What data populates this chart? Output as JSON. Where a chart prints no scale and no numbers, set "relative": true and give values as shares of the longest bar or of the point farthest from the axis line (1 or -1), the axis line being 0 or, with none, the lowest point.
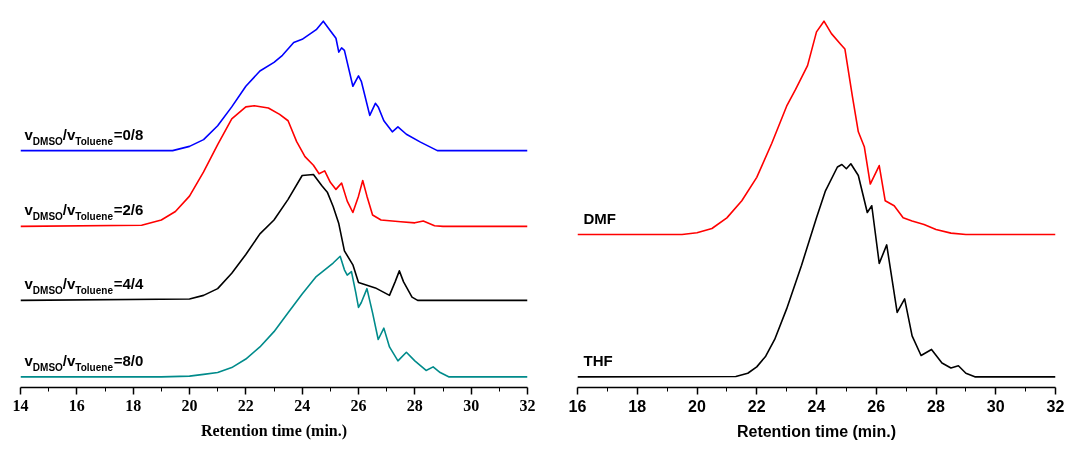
{
  "chart_data": [
    {
      "type": "line",
      "xlabel": "Retention time (min.)",
      "relative": true,
      "xlim": [
        14,
        32
      ],
      "xticks": [
        14,
        16,
        18,
        20,
        22,
        24,
        26,
        28,
        30,
        32
      ],
      "tick_labels": "x",
      "grid": false,
      "marker": "none",
      "line_style": "solid",
      "series": [
        {
          "name": "v$_{DMSO}$/v$_{Toluene}$=0/8",
          "color": "#0000ff",
          "x": [
            14,
            19.4,
            20,
            20.5,
            21,
            21.5,
            22,
            22.5,
            23,
            23.3,
            23.7,
            24,
            24.5,
            24.75,
            25,
            25.2,
            25.3,
            25.4,
            25.5,
            25.8,
            26,
            26.1,
            26.4,
            26.6,
            26.7,
            26.9,
            27.2,
            27.4,
            27.7,
            28.2,
            28.5,
            28.8,
            32
          ],
          "values": [
            0.636,
            0.636,
            0.648,
            0.667,
            0.706,
            0.759,
            0.817,
            0.86,
            0.884,
            0.904,
            0.94,
            0.949,
            0.976,
            1.0,
            0.973,
            0.952,
            0.913,
            0.925,
            0.918,
            0.817,
            0.846,
            0.831,
            0.735,
            0.769,
            0.759,
            0.72,
            0.689,
            0.703,
            0.682,
            0.66,
            0.648,
            0.636,
            0.636
          ]
        },
        {
          "name": "v$_{DMSO}$/v$_{Toluene}$=2/6",
          "color": "#ff0000",
          "x": [
            14,
            18.3,
            19,
            19.5,
            20,
            20.5,
            21,
            21.5,
            22,
            22.3,
            22.8,
            23.2,
            23.5,
            23.8,
            24.1,
            24.4,
            24.6,
            24.8,
            25.0,
            25.2,
            25.4,
            25.6,
            25.8,
            26.0,
            26.15,
            26.3,
            26.5,
            26.8,
            27.5,
            28,
            28.3,
            28.7,
            29,
            32
          ],
          "values": [
            0.423,
            0.426,
            0.441,
            0.465,
            0.508,
            0.576,
            0.653,
            0.725,
            0.759,
            0.762,
            0.756,
            0.738,
            0.72,
            0.662,
            0.619,
            0.595,
            0.571,
            0.579,
            0.547,
            0.527,
            0.545,
            0.494,
            0.462,
            0.508,
            0.552,
            0.508,
            0.455,
            0.441,
            0.436,
            0.433,
            0.438,
            0.425,
            0.423,
            0.423
          ]
        },
        {
          "name": "v$_{DMSO}$/v$_{Toluene}$=4/4",
          "color": "#000000",
          "x": [
            14,
            20,
            20.5,
            21,
            21.5,
            22,
            22.5,
            23,
            23.5,
            24,
            24.4,
            24.7,
            24.9,
            25.1,
            25.3,
            25.5,
            25.8,
            26,
            26.6,
            27.1,
            27.3,
            27.45,
            27.6,
            27.9,
            28.1,
            32
          ],
          "values": [
            0.215,
            0.219,
            0.229,
            0.248,
            0.291,
            0.344,
            0.402,
            0.441,
            0.499,
            0.566,
            0.569,
            0.537,
            0.518,
            0.479,
            0.431,
            0.354,
            0.315,
            0.265,
            0.25,
            0.229,
            0.267,
            0.298,
            0.267,
            0.224,
            0.215,
            0.215
          ]
        },
        {
          "name": "v$_{DMSO}$/v$_{Toluene}$=8/0",
          "color": "#008b8b",
          "x": [
            14,
            19,
            20,
            20.5,
            21,
            21.5,
            22,
            22.5,
            23,
            23.5,
            24,
            24.5,
            24.8,
            25.1,
            25.35,
            25.5,
            25.6,
            25.75,
            25.9,
            26,
            26.1,
            26.3,
            26.5,
            26.7,
            26.9,
            27.1,
            27.4,
            27.7,
            28,
            28.4,
            28.65,
            28.9,
            29.2,
            32
          ],
          "values": [
            0,
            0,
            0.002,
            0.007,
            0.012,
            0.026,
            0.05,
            0.084,
            0.127,
            0.18,
            0.233,
            0.282,
            0.301,
            0.32,
            0.339,
            0.301,
            0.286,
            0.296,
            0.238,
            0.195,
            0.209,
            0.248,
            0.18,
            0.105,
            0.137,
            0.084,
            0.045,
            0.069,
            0.045,
            0.018,
            0.028,
            0.012,
            0,
            0
          ]
        }
      ]
    },
    {
      "type": "line",
      "xlabel": "Retention time (min.)",
      "relative": true,
      "xlim": [
        16,
        32
      ],
      "xticks": [
        16,
        18,
        20,
        22,
        24,
        26,
        28,
        30,
        32
      ],
      "tick_labels": "x",
      "grid": false,
      "marker": "none",
      "line_style": "solid",
      "series": [
        {
          "name": "DMF",
          "color": "#ff0000",
          "x": [
            16,
            19.5,
            20,
            20.5,
            21,
            21.5,
            22,
            22.5,
            23,
            23.3,
            23.7,
            24,
            24.25,
            24.5,
            24.8,
            24.95,
            25.2,
            25.4,
            25.6,
            25.8,
            26.1,
            26.3,
            26.6,
            26.9,
            27.2,
            27.6,
            28,
            28.5,
            29,
            32
          ],
          "values": [
            0.4,
            0.4,
            0.405,
            0.417,
            0.447,
            0.495,
            0.561,
            0.656,
            0.761,
            0.808,
            0.875,
            0.97,
            1.0,
            0.965,
            0.936,
            0.922,
            0.789,
            0.689,
            0.647,
            0.542,
            0.594,
            0.495,
            0.481,
            0.447,
            0.438,
            0.428,
            0.414,
            0.404,
            0.4,
            0.4
          ]
        },
        {
          "name": "THF",
          "color": "#000000",
          "x": [
            16,
            21.3,
            21.7,
            22,
            22.3,
            22.6,
            23,
            23.5,
            24,
            24.3,
            24.7,
            24.85,
            25,
            25.15,
            25.4,
            25.55,
            25.7,
            25.85,
            26.1,
            26.35,
            26.7,
            26.95,
            27.2,
            27.5,
            27.85,
            28.2,
            28.5,
            28.75,
            29,
            29.3,
            32
          ],
          "values": [
            0,
            0.001,
            0.01,
            0.028,
            0.058,
            0.105,
            0.191,
            0.314,
            0.447,
            0.523,
            0.59,
            0.597,
            0.585,
            0.599,
            0.566,
            0.514,
            0.462,
            0.481,
            0.319,
            0.371,
            0.181,
            0.219,
            0.115,
            0.06,
            0.077,
            0.039,
            0.025,
            0.031,
            0.01,
            0,
            0
          ]
        }
      ]
    }
  ]
}
